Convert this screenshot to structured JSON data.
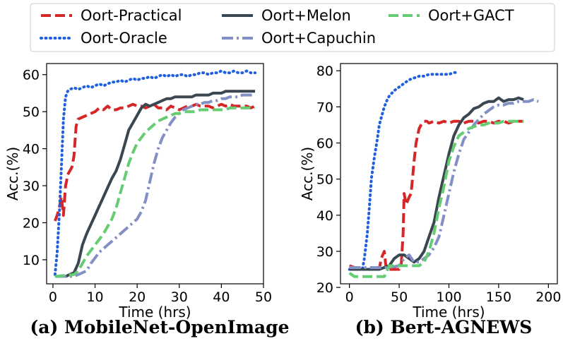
{
  "chart_data": [
    {
      "type": "line",
      "title": "(a) MobileNet-OpenImage",
      "xlabel": "Time (hrs)",
      "ylabel": "Acc.(%)",
      "xlim": [
        -1.5,
        50
      ],
      "ylim": [
        3.5,
        63
      ],
      "xticks": [
        "0",
        "10",
        "20",
        "30",
        "40",
        "50"
      ],
      "yticks": [
        "10",
        "20",
        "30",
        "40",
        "50",
        "60"
      ],
      "series": [
        {
          "name": "Oort-Practical",
          "x": [
            0.5,
            1,
            1.5,
            2,
            2.5,
            3,
            3.2,
            3.5,
            4,
            4.5,
            5,
            5.5,
            6,
            7,
            8,
            9,
            10,
            11,
            12,
            13,
            14,
            15,
            16,
            17,
            18,
            19,
            20,
            21,
            22,
            23,
            24,
            25,
            26,
            27,
            28,
            29,
            30,
            31,
            32,
            33,
            34,
            35,
            36,
            37,
            38,
            39,
            40,
            41,
            42,
            43,
            44,
            45,
            46,
            47,
            48
          ],
          "y": [
            20.5,
            22,
            24,
            27,
            22,
            30,
            31,
            33,
            34,
            35,
            38,
            46,
            48,
            48.5,
            49,
            49.5,
            50,
            51,
            50.5,
            51.5,
            50.5,
            50.5,
            51,
            51,
            51.5,
            52,
            51.5,
            51.5,
            51,
            51.5,
            52,
            51,
            51,
            50.5,
            51.5,
            51,
            50.5,
            51,
            51.5,
            51.5,
            52,
            51.5,
            51.5,
            51.5,
            51,
            51.5,
            52,
            51.5,
            52,
            51.5,
            51.5,
            51.5,
            51.5,
            51,
            51.5
          ]
        },
        {
          "name": "Oort-Oracle",
          "x": [
            0.5,
            1,
            1.5,
            2,
            2.5,
            3,
            3.5,
            4,
            5,
            6,
            7,
            8,
            9,
            10,
            11,
            12,
            13,
            14,
            15,
            16,
            17,
            18,
            19,
            20,
            21,
            22,
            23,
            24,
            25,
            26,
            27,
            28,
            29,
            30,
            31,
            32,
            33,
            34,
            35,
            36,
            37,
            38,
            39,
            40,
            41,
            42,
            43,
            44,
            45,
            46,
            47,
            48
          ],
          "y": [
            6,
            12,
            22,
            35,
            48,
            54,
            55.5,
            56,
            56.5,
            56,
            56.5,
            57,
            56.5,
            57,
            57.5,
            57,
            57.5,
            58,
            58,
            58.5,
            58,
            58.5,
            59,
            58.5,
            59,
            59,
            59.5,
            59,
            59.5,
            60,
            59.5,
            60,
            59.5,
            60,
            60,
            59.5,
            60,
            60,
            60.5,
            60.5,
            60,
            60.5,
            60.5,
            61,
            60.5,
            60.5,
            61,
            60.5,
            60.5,
            61,
            60.5,
            60.5
          ]
        },
        {
          "name": "Oort+Melon",
          "x": [
            0.5,
            3,
            5,
            6,
            7,
            8,
            9,
            10,
            11,
            12,
            13,
            14,
            15,
            16,
            17,
            18,
            19,
            20,
            21,
            22,
            23,
            24,
            25,
            26,
            27,
            28,
            29,
            30,
            31,
            32,
            33,
            34,
            35,
            36,
            37,
            38,
            39,
            40,
            41,
            42,
            43,
            44,
            45,
            46,
            47,
            48
          ],
          "y": [
            5.5,
            5.5,
            6.5,
            9,
            14,
            17,
            19.5,
            22,
            24.5,
            27,
            29.5,
            32,
            34,
            37,
            41,
            45,
            47,
            49,
            51,
            52,
            51.5,
            52,
            52.5,
            53,
            53.5,
            53.5,
            54,
            54,
            54,
            54,
            54,
            54.5,
            54.5,
            54.5,
            54.5,
            55,
            55,
            55,
            55.5,
            55.5,
            55.5,
            55.5,
            55.5,
            55.5,
            55.5,
            55.5
          ]
        },
        {
          "name": "Oort+Capuchin",
          "x": [
            0.5,
            5,
            6,
            7,
            8,
            9,
            10,
            11,
            12,
            13,
            14,
            15,
            16,
            17,
            18,
            19,
            20,
            21,
            22,
            23,
            24,
            25,
            26,
            27,
            28,
            29,
            30,
            31,
            32,
            33,
            34,
            35,
            36,
            37,
            38,
            39,
            40,
            41,
            42,
            43,
            44,
            45,
            46,
            47,
            48
          ],
          "y": [
            5.5,
            5.5,
            6,
            6.5,
            7,
            9,
            10.5,
            12,
            13,
            14,
            15,
            16,
            17,
            18,
            19,
            20,
            21,
            23,
            26,
            31,
            36,
            40,
            43,
            45,
            47,
            48.5,
            49.5,
            50.5,
            51,
            51.5,
            52,
            52,
            52.5,
            52.5,
            53,
            53,
            53.5,
            53.5,
            54,
            54,
            54,
            54.5,
            54.5,
            54.5,
            54.5
          ]
        },
        {
          "name": "Oort+GACT",
          "x": [
            0.5,
            5,
            6,
            7,
            8,
            9,
            10,
            11,
            12,
            13,
            14,
            15,
            16,
            17,
            18,
            19,
            20,
            21,
            22,
            23,
            24,
            25,
            26,
            27,
            28,
            29,
            30,
            31,
            32,
            33,
            34,
            35,
            36,
            37,
            38,
            39,
            40,
            41,
            42,
            43,
            44,
            45,
            46,
            47,
            48
          ],
          "y": [
            5.5,
            6,
            7,
            9,
            11,
            12.5,
            14,
            15.5,
            17,
            19,
            21,
            24,
            28,
            32,
            36,
            39,
            41.5,
            43,
            44.5,
            45.5,
            46.5,
            47.5,
            48,
            48.5,
            49,
            49.5,
            49.5,
            50,
            50,
            50,
            50,
            50.5,
            50.5,
            50.5,
            50.5,
            50.5,
            50.5,
            50.5,
            51,
            51,
            51,
            51,
            51,
            51,
            51
          ]
        }
      ]
    },
    {
      "type": "line",
      "title": "(b) Bert-AGNEWS",
      "xlabel": "Time (hrs)",
      "ylabel": "Acc.(%)",
      "xlim": [
        -9,
        209
      ],
      "ylim": [
        21,
        82
      ],
      "xticks": [
        "0",
        "50",
        "100",
        "150",
        "200"
      ],
      "yticks": [
        "20",
        "30",
        "40",
        "50",
        "60",
        "70",
        "80"
      ],
      "series": [
        {
          "name": "Oort-Practical",
          "x": [
            0,
            10,
            20,
            30,
            32,
            35,
            37,
            40,
            45,
            48,
            50,
            52,
            54,
            55,
            57,
            60,
            62,
            65,
            67,
            70,
            72,
            75,
            78,
            80,
            85,
            90,
            95,
            100,
            105,
            110,
            115,
            120,
            125,
            130,
            135,
            140,
            145,
            150,
            155,
            160,
            165,
            170,
            175
          ],
          "y": [
            26,
            25,
            25,
            25,
            28,
            30,
            25,
            25,
            25,
            25,
            25,
            26,
            35,
            46,
            43,
            45,
            46,
            55,
            60,
            64,
            65,
            66,
            66,
            65.5,
            66,
            65.5,
            66,
            65.5,
            66,
            66,
            65.5,
            66,
            66,
            65.5,
            66,
            66,
            65.5,
            66,
            66,
            65.5,
            66,
            66,
            66
          ]
        },
        {
          "name": "Oort-Oracle",
          "x": [
            0,
            5,
            10,
            13,
            15,
            18,
            20,
            22,
            25,
            28,
            30,
            33,
            35,
            38,
            40,
            45,
            50,
            55,
            60,
            65,
            70,
            75,
            80,
            85,
            90,
            95,
            100,
            105,
            110
          ],
          "y": [
            25,
            25,
            25,
            25,
            28,
            35,
            42,
            50,
            56,
            61,
            65,
            68,
            70,
            72,
            73,
            74.5,
            75.5,
            76.5,
            77.5,
            78,
            78.5,
            78.5,
            79,
            79,
            79,
            79,
            79,
            79.5,
            79.5
          ]
        },
        {
          "name": "Oort+Melon",
          "x": [
            0,
            10,
            20,
            30,
            40,
            45,
            50,
            55,
            60,
            65,
            70,
            75,
            80,
            85,
            90,
            95,
            100,
            105,
            110,
            115,
            120,
            125,
            130,
            135,
            140,
            145,
            150,
            155,
            160,
            165,
            170,
            175
          ],
          "y": [
            25,
            25,
            25,
            25,
            26,
            28,
            29,
            29,
            28,
            27,
            28,
            30,
            34,
            38,
            45,
            51,
            57,
            62,
            65,
            67,
            68,
            69.5,
            70,
            71,
            71.5,
            71.5,
            72.5,
            71.5,
            72,
            72,
            72.5,
            72
          ]
        },
        {
          "name": "Oort+Capuchin",
          "x": [
            0,
            10,
            20,
            30,
            40,
            50,
            55,
            60,
            65,
            70,
            75,
            80,
            85,
            90,
            95,
            100,
            105,
            110,
            115,
            120,
            125,
            130,
            135,
            140,
            145,
            150,
            155,
            160,
            165,
            170,
            175,
            180,
            185,
            190
          ],
          "y": [
            25.5,
            25.5,
            25.5,
            25.5,
            25.5,
            26,
            28,
            29,
            27,
            27,
            28,
            29,
            31,
            34,
            40,
            46,
            52,
            57,
            61,
            63,
            65,
            66.5,
            68,
            69,
            70,
            70.5,
            70.5,
            71,
            71,
            71.5,
            71.5,
            71.5,
            72,
            71.5
          ]
        },
        {
          "name": "Oort+GACT",
          "x": [
            0,
            5,
            10,
            20,
            30,
            35,
            40,
            50,
            60,
            70,
            75,
            80,
            85,
            90,
            95,
            100,
            105,
            110,
            115,
            120,
            125,
            130,
            135,
            140,
            145,
            150,
            155,
            160,
            165,
            170,
            175
          ],
          "y": [
            24,
            23,
            23,
            23,
            23,
            23,
            26,
            26,
            26,
            26,
            27,
            30,
            35,
            42,
            48,
            55,
            59,
            62,
            63,
            64,
            64.5,
            65,
            65,
            65.5,
            65.5,
            65.5,
            66,
            66,
            66,
            66,
            66
          ]
        }
      ]
    }
  ],
  "legend": [
    {
      "label": "Oort-Practical",
      "color": "#d62728",
      "style": "dashed"
    },
    {
      "label": "Oort-Oracle",
      "color": "#1f5fe0",
      "style": "dotted"
    },
    {
      "label": "Oort+Melon",
      "color": "#3a4650",
      "style": "solid"
    },
    {
      "label": "Oort+Capuchin",
      "color": "#8390c6",
      "style": "dashdot"
    },
    {
      "label": "Oort+GACT",
      "color": "#66cc73",
      "style": "dashed"
    }
  ]
}
